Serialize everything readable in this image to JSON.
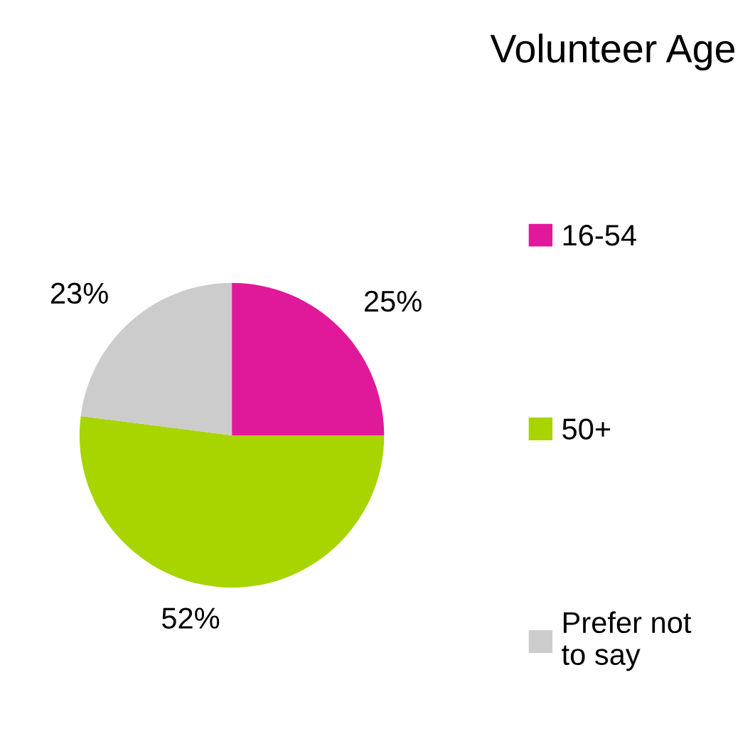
{
  "chart_data": {
    "type": "pie",
    "title": "Volunteer Age",
    "categories": [
      "16-54",
      "50+",
      "Prefer not\nto say"
    ],
    "values": [
      25,
      52,
      23
    ],
    "colors": [
      "#e0199a",
      "#a8d400",
      "#cccccc"
    ],
    "value_labels": [
      "25%",
      "52%",
      "23%"
    ],
    "legend": "right"
  }
}
